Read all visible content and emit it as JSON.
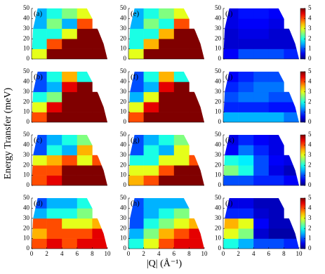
{
  "figure": {
    "xlabel": "|Q| (Å⁻¹)",
    "ylabel": "Energy Transfer (meV)"
  },
  "chart_data": [
    {
      "type": "heatmap",
      "label": "(a)",
      "xbins": [
        0,
        2,
        4,
        6,
        8,
        10
      ],
      "ybins": [
        0,
        10,
        20,
        30,
        40,
        50
      ],
      "clim": [
        0,
        5
      ],
      "ylim": [
        0,
        50
      ],
      "xlim": [
        0,
        10
      ],
      "yticks": [
        0,
        10,
        20,
        30,
        40,
        50
      ],
      "z": [
        [
          3,
          5,
          5,
          5,
          5
        ],
        [
          2,
          4,
          5,
          5,
          5
        ],
        [
          2,
          2,
          3,
          5,
          5
        ],
        [
          1.5,
          2.5,
          1.5,
          4,
          null
        ],
        [
          1.5,
          2,
          2.5,
          3,
          null
        ]
      ]
    },
    {
      "type": "heatmap",
      "label": "(b)",
      "xbins": [
        0,
        2,
        4,
        6,
        8,
        10
      ],
      "ybins": [
        0,
        10,
        20,
        30,
        40,
        50
      ],
      "clim": [
        0,
        5
      ],
      "ylim": [
        0,
        50
      ],
      "xlim": [
        0,
        10
      ],
      "yticks": [
        0,
        10,
        20,
        30,
        40,
        50
      ],
      "z": [
        [
          4,
          5,
          5,
          5,
          5
        ],
        [
          3,
          4.5,
          5,
          5,
          5
        ],
        [
          2,
          2.5,
          5,
          5,
          5
        ],
        [
          1,
          1.5,
          4.5,
          5,
          null
        ],
        [
          1,
          2,
          3.5,
          2,
          null
        ]
      ]
    },
    {
      "type": "heatmap",
      "label": "(c)",
      "xbins": [
        0,
        2,
        4,
        6,
        8,
        10
      ],
      "ybins": [
        0,
        10,
        20,
        30,
        40,
        50
      ],
      "clim": [
        0,
        5
      ],
      "ylim": [
        0,
        50
      ],
      "xlim": [
        0,
        10
      ],
      "yticks": [
        0,
        10,
        20,
        30,
        40,
        50
      ],
      "z": [
        [
          4,
          4.5,
          5,
          5,
          5
        ],
        [
          4,
          4,
          5,
          5,
          5
        ],
        [
          3,
          3.5,
          4,
          3,
          4
        ],
        [
          1,
          2,
          1.5,
          3.5,
          null
        ],
        [
          1,
          1.5,
          2,
          2.5,
          null
        ]
      ]
    },
    {
      "type": "heatmap",
      "label": "(d)",
      "xbins": [
        0,
        2,
        4,
        6,
        8,
        10
      ],
      "ybins": [
        0,
        10,
        20,
        30,
        40,
        50
      ],
      "clim": [
        0,
        5
      ],
      "ylim": [
        0,
        50
      ],
      "xlim": [
        0,
        10
      ],
      "yticks": [
        0,
        10,
        20,
        30,
        40,
        50
      ],
      "xticks": [
        0,
        2,
        4,
        6,
        8,
        10
      ],
      "z": [
        [
          4,
          4.5,
          4,
          4.5,
          4.5
        ],
        [
          3.5,
          4,
          4,
          4,
          4.5
        ],
        [
          4,
          4,
          3,
          3,
          3.5
        ],
        [
          1.5,
          2,
          2,
          2.5,
          null
        ],
        [
          1,
          1.5,
          1.5,
          2,
          null
        ]
      ]
    },
    {
      "type": "heatmap",
      "label": "(e)",
      "xbins": [
        0,
        2,
        4,
        6,
        8,
        10
      ],
      "ybins": [
        0,
        10,
        20,
        30,
        40,
        50
      ],
      "clim": [
        0,
        5
      ],
      "ylim": [
        0,
        50
      ],
      "xlim": [
        0,
        10
      ],
      "yticks": [
        0,
        10,
        20,
        30,
        40,
        50
      ],
      "z": [
        [
          3,
          5,
          5,
          5,
          5
        ],
        [
          2,
          3.5,
          5,
          5,
          5
        ],
        [
          2,
          2,
          3.5,
          5,
          5
        ],
        [
          1.5,
          2.5,
          2,
          4,
          null
        ],
        [
          1.5,
          2,
          2.5,
          3,
          null
        ]
      ]
    },
    {
      "type": "heatmap",
      "label": "(f)",
      "xbins": [
        0,
        2,
        4,
        6,
        8,
        10
      ],
      "ybins": [
        0,
        10,
        20,
        30,
        40,
        50
      ],
      "clim": [
        0,
        5
      ],
      "ylim": [
        0,
        50
      ],
      "xlim": [
        0,
        10
      ],
      "yticks": [
        0,
        10,
        20,
        30,
        40,
        50
      ],
      "z": [
        [
          4,
          5,
          5,
          5,
          5
        ],
        [
          3,
          4.5,
          5,
          5,
          5
        ],
        [
          1.5,
          3,
          5,
          5,
          5
        ],
        [
          1,
          1.5,
          4.5,
          5,
          null
        ],
        [
          1,
          2,
          3.5,
          2,
          null
        ]
      ]
    },
    {
      "type": "heatmap",
      "label": "(g)",
      "xbins": [
        0,
        2,
        4,
        6,
        8,
        10
      ],
      "ybins": [
        0,
        10,
        20,
        30,
        40,
        50
      ],
      "clim": [
        0,
        5
      ],
      "ylim": [
        0,
        50
      ],
      "xlim": [
        0,
        10
      ],
      "yticks": [
        0,
        10,
        20,
        30,
        40,
        50
      ],
      "z": [
        [
          3.5,
          4,
          5,
          5,
          5
        ],
        [
          3,
          3,
          4,
          5,
          5
        ],
        [
          2,
          2,
          3,
          3,
          4
        ],
        [
          1,
          2,
          1.5,
          3,
          null
        ],
        [
          1,
          1.5,
          2,
          2.5,
          null
        ]
      ]
    },
    {
      "type": "heatmap",
      "label": "(h)",
      "xbins": [
        0,
        2,
        4,
        6,
        8,
        10
      ],
      "ybins": [
        0,
        10,
        20,
        30,
        40,
        50
      ],
      "clim": [
        0,
        5
      ],
      "ylim": [
        0,
        50
      ],
      "xlim": [
        0,
        10
      ],
      "yticks": [
        0,
        10,
        20,
        30,
        40,
        50
      ],
      "xticks": [
        0,
        2,
        4,
        6,
        8,
        10
      ],
      "z": [
        [
          2,
          3,
          4,
          4.5,
          4.5
        ],
        [
          1.5,
          2.5,
          3.5,
          4,
          4.5
        ],
        [
          1,
          2,
          2.5,
          3,
          3.5
        ],
        [
          1,
          1.5,
          2,
          2.5,
          null
        ],
        [
          1,
          1.5,
          1.5,
          1.5,
          null
        ]
      ]
    },
    {
      "type": "heatmap",
      "label": "(i)",
      "xbins": [
        0,
        2,
        4,
        6,
        8,
        10
      ],
      "ybins": [
        0,
        10,
        20,
        30,
        40,
        50
      ],
      "clim": [
        0,
        5
      ],
      "cticks": [
        0,
        1,
        2,
        3,
        4,
        5
      ],
      "ylim": [
        0,
        50
      ],
      "xlim": [
        0,
        10
      ],
      "yticks": [
        0,
        10,
        20,
        30,
        40,
        50
      ],
      "z": [
        [
          0.6,
          1,
          1,
          1,
          0.8
        ],
        [
          0.4,
          0.4,
          0.4,
          0.4,
          0.4
        ],
        [
          0.4,
          0.5,
          0.5,
          0.4,
          0.4
        ],
        [
          0.5,
          0.6,
          0.6,
          0.5,
          null
        ],
        [
          0.5,
          0.7,
          0.7,
          0.6,
          null
        ]
      ]
    },
    {
      "type": "heatmap",
      "label": "(j)",
      "xbins": [
        0,
        2,
        4,
        6,
        8,
        10
      ],
      "ybins": [
        0,
        10,
        20,
        30,
        40,
        50
      ],
      "clim": [
        0,
        5
      ],
      "cticks": [
        0,
        1,
        2,
        3,
        4,
        5
      ],
      "ylim": [
        0,
        50
      ],
      "xlim": [
        0,
        10
      ],
      "yticks": [
        0,
        10,
        20,
        30,
        40,
        50
      ],
      "z": [
        [
          1.5,
          1.5,
          1.5,
          1.5,
          1.2
        ],
        [
          0.8,
          0.8,
          0.8,
          0.7,
          0.7
        ],
        [
          1,
          1.2,
          1.2,
          1,
          1
        ],
        [
          0.8,
          1,
          1.2,
          1.2,
          null
        ],
        [
          0.6,
          0.8,
          1,
          1,
          null
        ]
      ]
    },
    {
      "type": "heatmap",
      "label": "(k)",
      "xbins": [
        0,
        2,
        4,
        6,
        8,
        10
      ],
      "ybins": [
        0,
        10,
        20,
        30,
        40,
        50
      ],
      "clim": [
        0,
        5
      ],
      "cticks": [
        0,
        1,
        2,
        3,
        4,
        5
      ],
      "ylim": [
        0,
        50
      ],
      "xlim": [
        0,
        10
      ],
      "yticks": [
        0,
        10,
        20,
        30,
        40,
        50
      ],
      "z": [
        [
          1,
          1,
          0.8,
          0.8,
          0.6
        ],
        [
          2.5,
          2,
          1,
          0.5,
          0.3
        ],
        [
          2,
          1.8,
          1,
          0.6,
          0.5
        ],
        [
          0.6,
          1.2,
          0.8,
          0.5,
          null
        ],
        [
          0.5,
          0.8,
          0.6,
          0.5,
          null
        ]
      ]
    },
    {
      "type": "heatmap",
      "label": "(l)",
      "xbins": [
        0,
        2,
        4,
        6,
        8,
        10
      ],
      "ybins": [
        0,
        10,
        20,
        30,
        40,
        50
      ],
      "clim": [
        0,
        5
      ],
      "cticks": [
        0,
        1,
        2,
        3,
        4,
        5
      ],
      "ylim": [
        0,
        50
      ],
      "xlim": [
        0,
        10
      ],
      "yticks": [
        0,
        10,
        20,
        30,
        40,
        50
      ],
      "xticks": [
        0,
        2,
        4,
        6,
        8,
        10
      ],
      "z": [
        [
          2,
          1.5,
          1,
          1,
          0.8
        ],
        [
          3,
          2.5,
          0.4,
          0.2,
          0.2
        ],
        [
          3.5,
          3,
          0.6,
          0.3,
          0.3
        ],
        [
          0.8,
          0.8,
          0.4,
          0.3,
          null
        ],
        [
          0.5,
          0.5,
          0.3,
          0.3,
          null
        ]
      ]
    }
  ]
}
